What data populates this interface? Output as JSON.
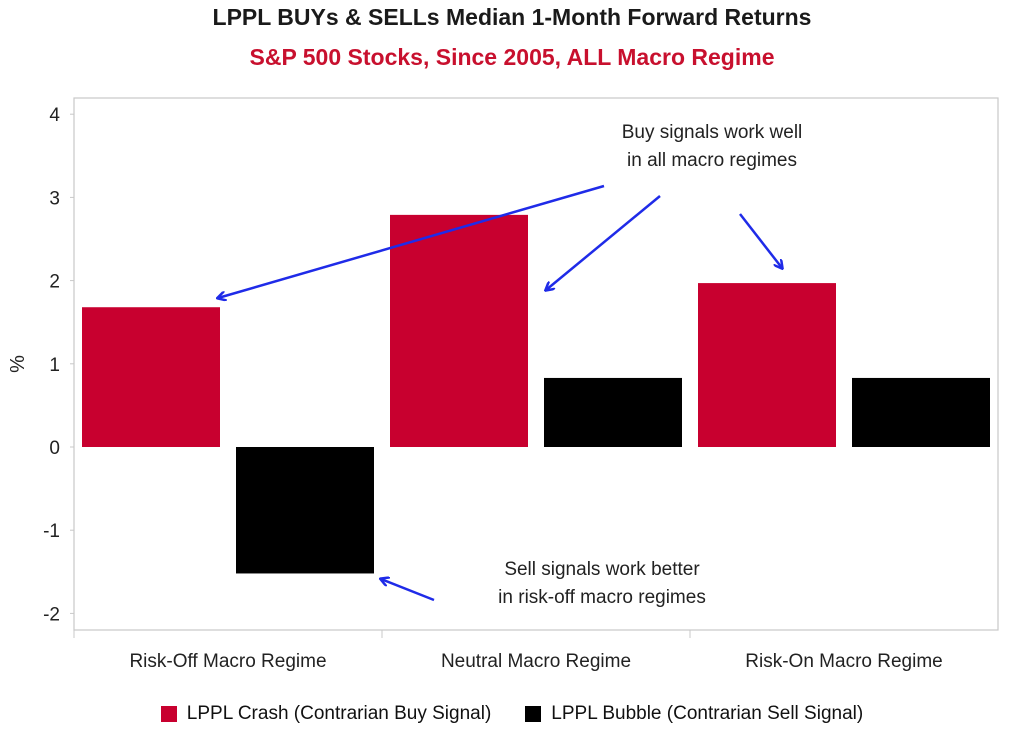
{
  "colors": {
    "crash": "#c8002f",
    "bubble": "#000000",
    "arrow": "#1f2be8",
    "axis": "#c8c8c8"
  },
  "chart_data": {
    "type": "bar",
    "title": "LPPL BUYs & SELLs Median 1-Month Forward Returns",
    "subtitle": "S&P 500 Stocks, Since 2005, ALL Macro Regime",
    "ylabel": "%",
    "ylim": [
      -2.2,
      4.2
    ],
    "yticks": [
      "4",
      "3",
      "2",
      "1",
      "0",
      "-1",
      "-2"
    ],
    "categories": [
      "Risk-Off Macro Regime",
      "Neutral Macro Regime",
      "Risk-On Macro Regime"
    ],
    "series": [
      {
        "name": "LPPL Crash (Contrarian Buy Signal)",
        "values": [
          1.68,
          2.79,
          1.97
        ]
      },
      {
        "name": "LPPL Bubble (Contrarian Sell Signal)",
        "values": [
          -1.52,
          0.83,
          0.83
        ]
      }
    ],
    "annotations": {
      "buy": [
        "Buy signals work well",
        "in all macro regimes"
      ],
      "sell": [
        "Sell signals work better",
        "in risk-off macro regimes"
      ]
    },
    "legend_position": "bottom"
  }
}
